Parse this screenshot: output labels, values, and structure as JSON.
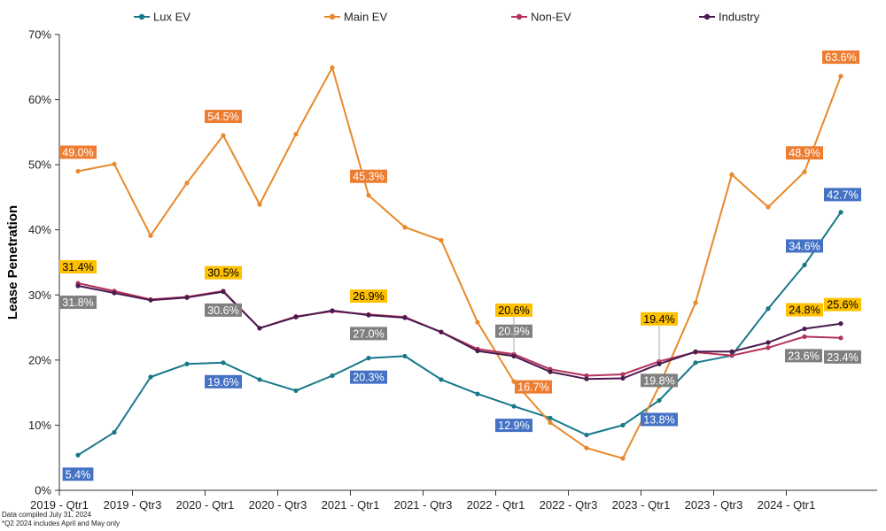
{
  "chart_data": {
    "type": "line",
    "ylabel": "Lease Penetration",
    "ylim": [
      0,
      70
    ],
    "yticks": [
      0,
      10,
      20,
      30,
      40,
      50,
      60,
      70
    ],
    "ytick_labels": [
      "0%",
      "10%",
      "20%",
      "30%",
      "40%",
      "50%",
      "60%",
      "70%"
    ],
    "x_labels_shown": [
      "2019 - Qtr1",
      "2019 - Qtr3",
      "2020 - Qtr1",
      "2020 - Qtr3",
      "2021 - Qtr1",
      "2021 - Qtr3",
      "2022 - Qtr1",
      "2022 - Qtr3",
      "2023 - Qtr1",
      "2023 - Qtr3",
      "2024 - Qtr1"
    ],
    "x_shown_indices": [
      0,
      2,
      4,
      6,
      8,
      10,
      12,
      14,
      16,
      18,
      20
    ],
    "n_points": 22,
    "grid": "none",
    "legend_position": "top",
    "series": [
      {
        "name": "Lux EV",
        "color": "#17788a",
        "values": [
          5.4,
          8.9,
          17.4,
          19.4,
          19.6,
          17.0,
          15.3,
          17.6,
          20.3,
          20.6,
          17.0,
          14.8,
          12.9,
          11.1,
          8.5,
          10.0,
          13.8,
          19.6,
          20.7,
          27.9,
          34.6,
          42.7
        ],
        "labels": [
          {
            "i": 0,
            "text": "5.4%",
            "bg": "#4472c4",
            "fg": "#ffffff"
          },
          {
            "i": 4,
            "text": "19.6%",
            "bg": "#4472c4",
            "fg": "#ffffff"
          },
          {
            "i": 8,
            "text": "20.3%",
            "bg": "#4472c4",
            "fg": "#ffffff"
          },
          {
            "i": 12,
            "text": "12.9%",
            "bg": "#4472c4",
            "fg": "#ffffff"
          },
          {
            "i": 16,
            "text": "13.8%",
            "bg": "#4472c4",
            "fg": "#ffffff"
          },
          {
            "i": 20,
            "text": "34.6%",
            "bg": "#4472c4",
            "fg": "#ffffff"
          },
          {
            "i": 21,
            "text": "42.7%",
            "bg": "#4472c4",
            "fg": "#ffffff"
          }
        ]
      },
      {
        "name": "Main EV",
        "color": "#e8892b",
        "values": [
          49.0,
          50.1,
          39.1,
          47.2,
          54.5,
          43.9,
          54.7,
          64.9,
          45.3,
          40.4,
          38.4,
          25.8,
          16.7,
          10.4,
          6.5,
          4.9,
          16.0,
          28.8,
          48.5,
          43.5,
          48.9,
          63.6
        ],
        "labels": [
          {
            "i": 0,
            "text": "49.0%",
            "bg": "#ed7d31",
            "fg": "#ffffff"
          },
          {
            "i": 4,
            "text": "54.5%",
            "bg": "#ed7d31",
            "fg": "#ffffff"
          },
          {
            "i": 8,
            "text": "45.3%",
            "bg": "#ed7d31",
            "fg": "#ffffff"
          },
          {
            "i": 12,
            "text": "16.7%",
            "bg": "#ed7d31",
            "fg": "#ffffff"
          },
          {
            "i": 20,
            "text": "48.9%",
            "bg": "#ed7d31",
            "fg": "#ffffff"
          },
          {
            "i": 21,
            "text": "63.6%",
            "bg": "#ed7d31",
            "fg": "#ffffff"
          }
        ]
      },
      {
        "name": "Non-EV",
        "color": "#b5325a",
        "values": [
          31.8,
          30.6,
          29.3,
          29.7,
          30.6,
          24.9,
          26.7,
          27.5,
          27.0,
          26.6,
          24.3,
          21.7,
          20.9,
          18.6,
          17.6,
          17.8,
          19.8,
          21.2,
          20.7,
          21.9,
          23.6,
          23.4
        ],
        "labels": [
          {
            "i": 0,
            "text": "31.8%",
            "bg": "#808080",
            "fg": "#ffffff"
          },
          {
            "i": 4,
            "text": "30.6%",
            "bg": "#808080",
            "fg": "#ffffff"
          },
          {
            "i": 8,
            "text": "27.0%",
            "bg": "#808080",
            "fg": "#ffffff"
          },
          {
            "i": 12,
            "text": "20.9%",
            "bg": "#808080",
            "fg": "#ffffff"
          },
          {
            "i": 16,
            "text": "19.8%",
            "bg": "#808080",
            "fg": "#ffffff"
          },
          {
            "i": 20,
            "text": "23.6%",
            "bg": "#808080",
            "fg": "#ffffff"
          },
          {
            "i": 21,
            "text": "23.4%",
            "bg": "#808080",
            "fg": "#ffffff"
          }
        ]
      },
      {
        "name": "Industry",
        "color": "#4a1a4f",
        "values": [
          31.4,
          30.3,
          29.2,
          29.6,
          30.5,
          24.9,
          26.6,
          27.6,
          26.9,
          26.5,
          24.3,
          21.4,
          20.6,
          18.2,
          17.1,
          17.2,
          19.4,
          21.3,
          21.3,
          22.7,
          24.8,
          25.6
        ],
        "labels": [
          {
            "i": 0,
            "text": "31.4%",
            "bg": "#ffc000",
            "fg": "#000000"
          },
          {
            "i": 4,
            "text": "30.5%",
            "bg": "#ffc000",
            "fg": "#000000"
          },
          {
            "i": 8,
            "text": "26.9%",
            "bg": "#ffc000",
            "fg": "#000000"
          },
          {
            "i": 12,
            "text": "20.6%",
            "bg": "#ffc000",
            "fg": "#000000"
          },
          {
            "i": 16,
            "text": "19.4%",
            "bg": "#ffc000",
            "fg": "#000000"
          },
          {
            "i": 20,
            "text": "24.8%",
            "bg": "#ffc000",
            "fg": "#000000"
          },
          {
            "i": 21,
            "text": "25.6%",
            "bg": "#ffc000",
            "fg": "#000000"
          }
        ]
      }
    ]
  },
  "footnotes": {
    "line1": "Data compiled July 31, 2024",
    "line2": "*Q2 2024 includes April and May only"
  }
}
